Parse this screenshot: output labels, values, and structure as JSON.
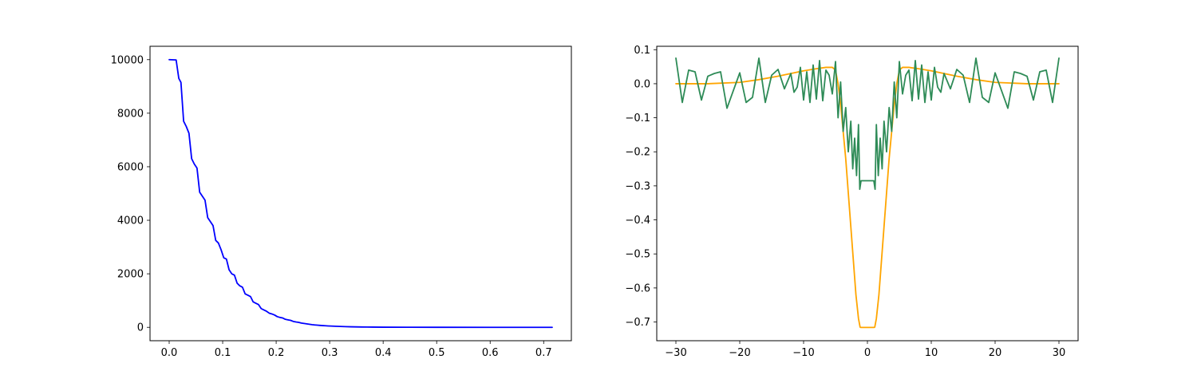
{
  "chart_data": [
    {
      "type": "line",
      "title": "",
      "xlabel": "",
      "ylabel": "",
      "xlim": [
        -0.0358,
        0.7518
      ],
      "ylim": [
        -500,
        10500
      ],
      "grid": false,
      "xticks": [
        0.0,
        0.1,
        0.2,
        0.3,
        0.4,
        0.5,
        0.6,
        0.7
      ],
      "xtick_labels": [
        "0.0",
        "0.1",
        "0.2",
        "0.3",
        "0.4",
        "0.5",
        "0.6",
        "0.7"
      ],
      "yticks": [
        0,
        2000,
        4000,
        6000,
        8000,
        10000
      ],
      "ytick_labels": [
        "0",
        "2000",
        "4000",
        "6000",
        "8000",
        "10000"
      ],
      "series": [
        {
          "color": "#0000ff",
          "x": [
            0.0,
            0.013,
            0.018,
            0.022,
            0.027,
            0.032,
            0.037,
            0.042,
            0.047,
            0.052,
            0.057,
            0.062,
            0.067,
            0.072,
            0.077,
            0.082,
            0.087,
            0.092,
            0.097,
            0.102,
            0.107,
            0.112,
            0.117,
            0.122,
            0.127,
            0.132,
            0.137,
            0.142,
            0.147,
            0.152,
            0.157,
            0.162,
            0.167,
            0.172,
            0.177,
            0.182,
            0.187,
            0.192,
            0.197,
            0.202,
            0.207,
            0.212,
            0.217,
            0.222,
            0.227,
            0.232,
            0.237,
            0.242,
            0.247,
            0.252,
            0.257,
            0.262,
            0.267,
            0.272,
            0.277,
            0.282,
            0.287,
            0.292,
            0.297,
            0.302,
            0.31,
            0.32,
            0.33,
            0.34,
            0.35,
            0.36,
            0.37,
            0.38,
            0.4,
            0.45,
            0.5,
            0.6,
            0.716
          ],
          "y": [
            10000,
            9990,
            9300,
            9150,
            7700,
            7500,
            7250,
            6300,
            6100,
            5950,
            5050,
            4900,
            4750,
            4100,
            3950,
            3800,
            3250,
            3150,
            2900,
            2600,
            2550,
            2150,
            2000,
            1950,
            1650,
            1550,
            1500,
            1250,
            1200,
            1150,
            950,
            900,
            850,
            700,
            650,
            600,
            530,
            500,
            460,
            400,
            370,
            350,
            300,
            280,
            260,
            220,
            200,
            185,
            160,
            145,
            130,
            115,
            100,
            90,
            80,
            72,
            65,
            58,
            52,
            47,
            40,
            32,
            26,
            20,
            16,
            12,
            10,
            8,
            5,
            2,
            1,
            0,
            0
          ]
        }
      ]
    },
    {
      "type": "line",
      "title": "",
      "xlabel": "",
      "ylabel": "",
      "xlim": [
        -33.0,
        33.0
      ],
      "ylim": [
        -0.755,
        0.11
      ],
      "grid": false,
      "xticks": [
        -30,
        -20,
        -10,
        0,
        10,
        20,
        30
      ],
      "xtick_labels": [
        "−30",
        "−20",
        "−10",
        "0",
        "10",
        "20",
        "30"
      ],
      "yticks": [
        0.1,
        0.0,
        -0.1,
        -0.2,
        -0.3,
        -0.4,
        -0.5,
        -0.6,
        -0.7
      ],
      "ytick_labels": [
        "0.1",
        "0.0",
        "−0.1",
        "−0.2",
        "−0.3",
        "−0.4",
        "−0.5",
        "−0.6",
        "−0.7"
      ],
      "series": [
        {
          "color": "#ffa500",
          "x": [
            -30,
            -25,
            -20,
            -17,
            -14,
            -12,
            -10,
            -8,
            -6.5,
            -5.5,
            -5,
            -4.6,
            -4.2,
            -3.8,
            -3.4,
            -3.0,
            -2.6,
            -2.2,
            -1.8,
            -1.4,
            -1.15,
            -1.05,
            1.05,
            1.15,
            1.4,
            1.8,
            2.2,
            2.6,
            3.0,
            3.4,
            3.8,
            4.2,
            4.6,
            5,
            5.5,
            6.5,
            8,
            10,
            12,
            14,
            17,
            20,
            25,
            30
          ],
          "y": [
            0.0,
            0.0,
            0.004,
            0.012,
            0.022,
            0.03,
            0.038,
            0.044,
            0.048,
            0.048,
            0.04,
            0.0,
            -0.06,
            -0.14,
            -0.22,
            -0.32,
            -0.42,
            -0.52,
            -0.62,
            -0.69,
            -0.715,
            -0.716,
            -0.716,
            -0.715,
            -0.69,
            -0.62,
            -0.52,
            -0.42,
            -0.32,
            -0.22,
            -0.14,
            -0.06,
            0.0,
            0.04,
            0.048,
            0.048,
            0.044,
            0.038,
            0.03,
            0.022,
            0.012,
            0.004,
            0.0,
            0.0
          ]
        },
        {
          "color": "#2e8b57",
          "x": [
            -30,
            -29,
            -28,
            -27,
            -26,
            -25,
            -24,
            -23,
            -22,
            -21,
            -20,
            -19,
            -18,
            -17,
            -16,
            -15,
            -14,
            -13,
            -12,
            -11.5,
            -11,
            -10.5,
            -10,
            -9.5,
            -9,
            -8.5,
            -8,
            -7.5,
            -7,
            -6.5,
            -6,
            -5.5,
            -5,
            -4.6,
            -4.2,
            -3.8,
            -3.4,
            -3.0,
            -2.6,
            -2.3,
            -2.0,
            -1.7,
            -1.4,
            -1.2,
            -1.0,
            1.0,
            1.2,
            1.4,
            1.7,
            2.0,
            2.3,
            2.6,
            3.0,
            3.4,
            3.8,
            4.2,
            4.6,
            5,
            5.5,
            6,
            6.5,
            7,
            7.5,
            8,
            8.5,
            9,
            9.5,
            10,
            10.5,
            11,
            11.5,
            12,
            13,
            14,
            15,
            16,
            17,
            18,
            19,
            20,
            21,
            22,
            23,
            24,
            25,
            26,
            27,
            28,
            29,
            30
          ],
          "y": [
            0.075,
            -0.055,
            0.04,
            0.035,
            -0.048,
            0.022,
            0.03,
            0.035,
            -0.072,
            -0.02,
            0.032,
            -0.055,
            -0.04,
            0.075,
            -0.055,
            0.025,
            0.042,
            -0.015,
            0.03,
            -0.025,
            -0.01,
            0.048,
            -0.048,
            0.035,
            -0.055,
            0.055,
            -0.045,
            0.068,
            -0.05,
            0.04,
            0.025,
            -0.03,
            0.065,
            -0.1,
            0.005,
            -0.14,
            -0.07,
            -0.2,
            -0.11,
            -0.25,
            -0.16,
            -0.27,
            -0.12,
            -0.31,
            -0.285,
            -0.285,
            -0.31,
            -0.12,
            -0.27,
            -0.16,
            -0.25,
            -0.11,
            -0.2,
            -0.07,
            -0.14,
            0.005,
            -0.1,
            0.065,
            -0.03,
            0.025,
            0.04,
            -0.05,
            0.068,
            -0.045,
            0.055,
            -0.055,
            0.035,
            -0.048,
            0.048,
            -0.01,
            -0.025,
            0.03,
            -0.015,
            0.042,
            0.025,
            -0.055,
            0.075,
            -0.04,
            -0.055,
            0.032,
            -0.02,
            -0.072,
            0.035,
            0.03,
            0.022,
            -0.048,
            0.035,
            0.04,
            -0.055,
            0.075
          ]
        }
      ]
    }
  ]
}
